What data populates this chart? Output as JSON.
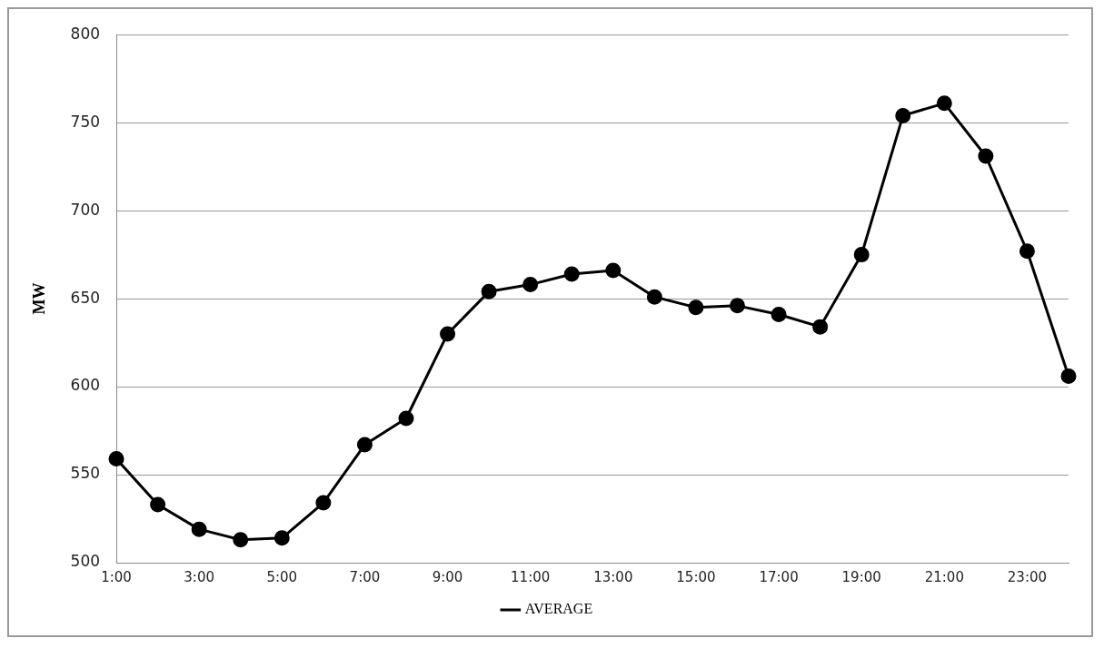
{
  "chart_data": {
    "type": "line",
    "ylabel": "MW",
    "categories": [
      "1:00",
      null,
      "3:00",
      null,
      "5:00",
      null,
      "7:00",
      null,
      "9:00",
      null,
      "11:00",
      null,
      "13:00",
      null,
      "15:00",
      null,
      "17:00",
      null,
      "19:00",
      null,
      "21:00",
      null,
      "23:00",
      null
    ],
    "series": [
      {
        "name": "AVERAGE",
        "color": "#000000",
        "values": [
          559,
          533,
          519,
          513,
          514,
          534,
          567,
          582,
          630,
          654,
          658,
          664,
          666,
          651,
          645,
          646,
          641,
          634,
          675,
          754,
          761,
          731,
          677,
          606
        ]
      }
    ],
    "ylim": [
      500,
      800
    ],
    "yticks": [
      500,
      550,
      600,
      650,
      700,
      750,
      800
    ],
    "grid": "y",
    "legend": "bottom",
    "marker": "circle",
    "line_style": "solid"
  }
}
